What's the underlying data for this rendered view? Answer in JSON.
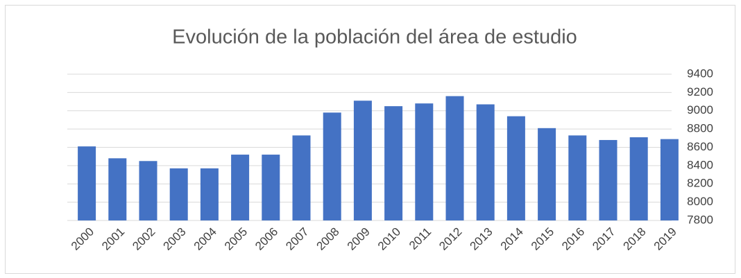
{
  "chart_data": {
    "type": "bar",
    "title": "Evolución de la población del área de estudio",
    "categories": [
      "2000",
      "2001",
      "2002",
      "2003",
      "2004",
      "2005",
      "2006",
      "2007",
      "2008",
      "2009",
      "2010",
      "2011",
      "2012",
      "2013",
      "2014",
      "2015",
      "2016",
      "2017",
      "2018",
      "2019"
    ],
    "values": [
      8610,
      8480,
      8450,
      8370,
      8370,
      8520,
      8520,
      8730,
      8980,
      9110,
      9050,
      9080,
      9160,
      9070,
      8940,
      8810,
      8730,
      8680,
      8710,
      8690
    ],
    "color": "#4472c4",
    "ylim": [
      7800,
      9400
    ],
    "yticks": [
      7800,
      8000,
      8200,
      8400,
      8600,
      8800,
      9000,
      9200,
      9400
    ],
    "grid": true
  }
}
